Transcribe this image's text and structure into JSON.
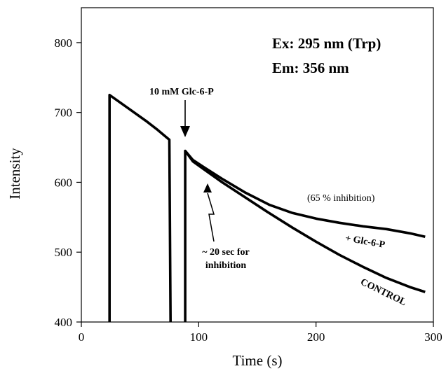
{
  "chart_data": {
    "type": "line",
    "title": "",
    "xlabel": "Time (s)",
    "ylabel": "Intensity",
    "xlim": [
      0,
      300
    ],
    "ylim": [
      400,
      850
    ],
    "xticks": [
      0,
      100,
      200,
      300
    ],
    "yticks": [
      400,
      500,
      600,
      700,
      800
    ],
    "grid": false,
    "series": [
      {
        "points": [
          [
            24,
            400
          ],
          [
            24,
            725
          ],
          [
            40,
            706
          ],
          [
            55,
            688
          ],
          [
            65,
            675
          ],
          [
            75,
            661
          ],
          [
            76,
            400
          ]
        ]
      },
      {
        "points": [
          [
            88.5,
            400
          ],
          [
            88.5,
            645
          ],
          [
            95,
            632
          ],
          [
            105,
            621
          ],
          [
            120,
            605
          ],
          [
            140,
            585
          ],
          [
            160,
            568
          ],
          [
            180,
            556
          ],
          [
            200,
            548
          ],
          [
            220,
            542
          ],
          [
            240,
            537
          ],
          [
            260,
            533
          ],
          [
            280,
            527
          ],
          [
            293,
            522
          ]
        ]
      },
      {
        "points": [
          [
            88.5,
            645
          ],
          [
            95,
            630
          ],
          [
            105,
            618
          ],
          [
            120,
            600
          ],
          [
            140,
            578
          ],
          [
            160,
            556
          ],
          [
            180,
            535
          ],
          [
            200,
            515
          ],
          [
            220,
            496
          ],
          [
            240,
            479
          ],
          [
            260,
            463
          ],
          [
            280,
            450
          ],
          [
            293,
            443
          ]
        ]
      }
    ],
    "annotations": {
      "excitation": "Ex:  295 nm (Trp)",
      "emission": "Em: 356 nm",
      "addition": "10 mM Glc-6-P",
      "percent_inhibition": "(65 % inhibition)",
      "time_line1": "~ 20 sec for",
      "time_line2": "inhibition",
      "glc_trace": "+ Glc-6-P",
      "control_trace": "CONTROL"
    }
  }
}
